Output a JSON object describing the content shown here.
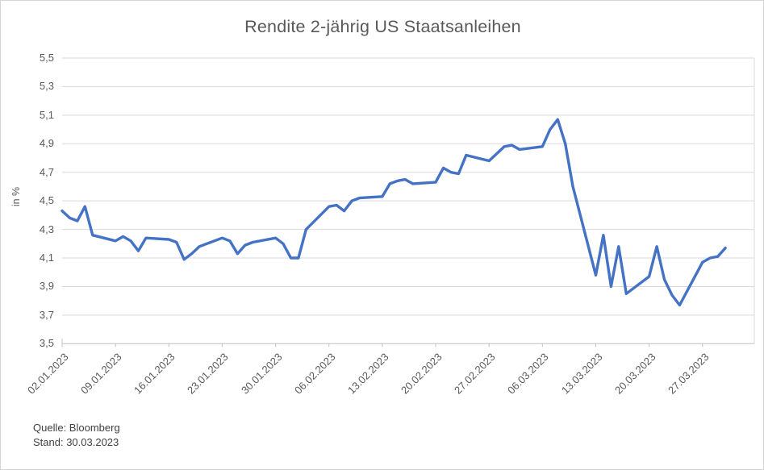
{
  "chart": {
    "title": "Rendite 2-jährig US Staatsanleihen",
    "y_axis_title": "in %",
    "source_line": "Quelle: Bloomberg",
    "stand_line": "Stand: 30.03.2023"
  },
  "chart_data": {
    "type": "line",
    "title": "Rendite 2-jährig US Staatsanleihen",
    "xlabel": "",
    "ylabel": "in %",
    "ylim": [
      3.5,
      5.5
    ],
    "y_tick_step": 0.2,
    "grid": "horizontal-only",
    "legend": "none",
    "line_color": "#4472C4",
    "grid_color": "#D9D9D9",
    "axis_color": "#BFBFBF",
    "text_color": "#595959",
    "y_ticks": [
      {
        "value": 5.5,
        "label": "5,5"
      },
      {
        "value": 5.3,
        "label": "5,3"
      },
      {
        "value": 5.1,
        "label": "5,1"
      },
      {
        "value": 4.9,
        "label": "4,9"
      },
      {
        "value": 4.7,
        "label": "4,7"
      },
      {
        "value": 4.5,
        "label": "4,5"
      },
      {
        "value": 4.3,
        "label": "4,3"
      },
      {
        "value": 4.1,
        "label": "4,1"
      },
      {
        "value": 3.9,
        "label": "3,9"
      },
      {
        "value": 3.7,
        "label": "3,7"
      },
      {
        "value": 3.5,
        "label": "3,5"
      }
    ],
    "x_tick_labels": [
      "02.01.2023",
      "09.01.2023",
      "16.01.2023",
      "23.01.2023",
      "30.01.2023",
      "06.02.2023",
      "13.02.2023",
      "20.02.2023",
      "27.02.2023",
      "06.03.2023",
      "13.03.2023",
      "20.03.2023",
      "27.03.2023"
    ],
    "series": [
      {
        "name": "Rendite 2-jährig US Staatsanleihen",
        "points": [
          {
            "date": "02.01.2023",
            "value": 4.43
          },
          {
            "date": "03.01.2023",
            "value": 4.38
          },
          {
            "date": "04.01.2023",
            "value": 4.36
          },
          {
            "date": "05.01.2023",
            "value": 4.46
          },
          {
            "date": "06.01.2023",
            "value": 4.26
          },
          {
            "date": "09.01.2023",
            "value": 4.22
          },
          {
            "date": "10.01.2023",
            "value": 4.25
          },
          {
            "date": "11.01.2023",
            "value": 4.22
          },
          {
            "date": "12.01.2023",
            "value": 4.15
          },
          {
            "date": "13.01.2023",
            "value": 4.24
          },
          {
            "date": "16.01.2023",
            "value": 4.23
          },
          {
            "date": "17.01.2023",
            "value": 4.21
          },
          {
            "date": "18.01.2023",
            "value": 4.09
          },
          {
            "date": "19.01.2023",
            "value": 4.13
          },
          {
            "date": "20.01.2023",
            "value": 4.18
          },
          {
            "date": "23.01.2023",
            "value": 4.24
          },
          {
            "date": "24.01.2023",
            "value": 4.22
          },
          {
            "date": "25.01.2023",
            "value": 4.13
          },
          {
            "date": "26.01.2023",
            "value": 4.19
          },
          {
            "date": "27.01.2023",
            "value": 4.21
          },
          {
            "date": "30.01.2023",
            "value": 4.24
          },
          {
            "date": "31.01.2023",
            "value": 4.2
          },
          {
            "date": "01.02.2023",
            "value": 4.1
          },
          {
            "date": "02.02.2023",
            "value": 4.1
          },
          {
            "date": "03.02.2023",
            "value": 4.3
          },
          {
            "date": "06.02.2023",
            "value": 4.46
          },
          {
            "date": "07.02.2023",
            "value": 4.47
          },
          {
            "date": "08.02.2023",
            "value": 4.43
          },
          {
            "date": "09.02.2023",
            "value": 4.5
          },
          {
            "date": "10.02.2023",
            "value": 4.52
          },
          {
            "date": "13.02.2023",
            "value": 4.53
          },
          {
            "date": "14.02.2023",
            "value": 4.62
          },
          {
            "date": "15.02.2023",
            "value": 4.64
          },
          {
            "date": "16.02.2023",
            "value": 4.65
          },
          {
            "date": "17.02.2023",
            "value": 4.62
          },
          {
            "date": "20.02.2023",
            "value": 4.63
          },
          {
            "date": "21.02.2023",
            "value": 4.73
          },
          {
            "date": "22.02.2023",
            "value": 4.7
          },
          {
            "date": "23.02.2023",
            "value": 4.69
          },
          {
            "date": "24.02.2023",
            "value": 4.82
          },
          {
            "date": "27.02.2023",
            "value": 4.78
          },
          {
            "date": "28.02.2023",
            "value": 4.83
          },
          {
            "date": "01.03.2023",
            "value": 4.88
          },
          {
            "date": "02.03.2023",
            "value": 4.89
          },
          {
            "date": "03.03.2023",
            "value": 4.86
          },
          {
            "date": "06.03.2023",
            "value": 4.88
          },
          {
            "date": "07.03.2023",
            "value": 5.0
          },
          {
            "date": "08.03.2023",
            "value": 5.07
          },
          {
            "date": "09.03.2023",
            "value": 4.9
          },
          {
            "date": "10.03.2023",
            "value": 4.6
          },
          {
            "date": "13.03.2023",
            "value": 3.98
          },
          {
            "date": "14.03.2023",
            "value": 4.26
          },
          {
            "date": "15.03.2023",
            "value": 3.9
          },
          {
            "date": "16.03.2023",
            "value": 4.18
          },
          {
            "date": "17.03.2023",
            "value": 3.85
          },
          {
            "date": "20.03.2023",
            "value": 3.97
          },
          {
            "date": "21.03.2023",
            "value": 4.18
          },
          {
            "date": "22.03.2023",
            "value": 3.95
          },
          {
            "date": "23.03.2023",
            "value": 3.84
          },
          {
            "date": "24.03.2023",
            "value": 3.77
          },
          {
            "date": "27.03.2023",
            "value": 4.07
          },
          {
            "date": "28.03.2023",
            "value": 4.1
          },
          {
            "date": "29.03.2023",
            "value": 4.11
          },
          {
            "date": "30.03.2023",
            "value": 4.17
          }
        ]
      }
    ],
    "source": "Quelle: Bloomberg",
    "as_of": "Stand: 30.03.2023"
  }
}
